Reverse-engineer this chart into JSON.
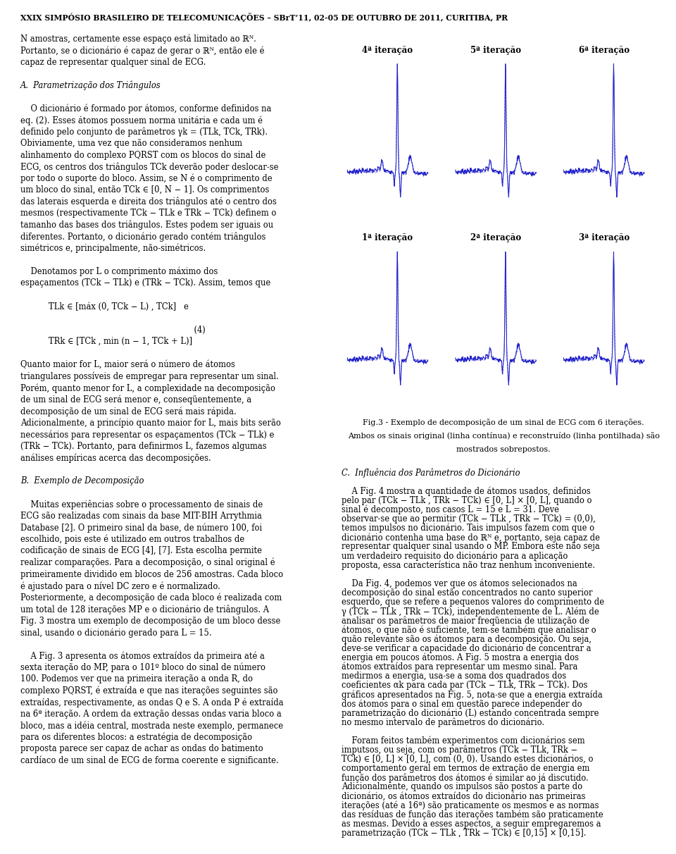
{
  "title_text": "XXIX SIMPÓSIO BRASILEIRO DE TELECOMUNICAÇÕES – SBrT’11, 02-05 DE OUTUBRO DE 2011, CURITIBA, PR",
  "ecg_color": "#2222cc",
  "plot_titles": [
    "1ª iteração",
    "2ª iteração",
    "3ª iteração",
    "4ª iteração",
    "5ª iteração",
    "6ª iteração"
  ],
  "caption_line1": "Fig.3 - Exemplo de decomposição de um sinal de ECG com 6 iterações.",
  "caption_line2": "Ambos os sinais original (linha contínua) e reconstruído (linha pontilhada) são",
  "caption_line3": "mostrados sobrepostos.",
  "page_bg": "#ffffff",
  "text_color": "#000000",
  "left_text": "N amostras, certamente esse espaço está limitado ao ℝᴺ.\nPortanto, se o dicionário é capaz de gerar o ℝᴺ, então ele é\ncapaz de representar qualquer sinal de ECG.\n\nA.  Parametrização dos Triângulos\n\n    O dicionário é formado por átomos, conforme definidos na\neq. (2). Esses átomos possuem norma unitária e cada um é\ndefinido pelo conjunto de parâmetros γk = (TLk, TCk, TRk).\nObiviamente, uma vez que não consideramos nenhum\nalinhamento do complexo PQRST com os blocos do sinal de\nECG, os centros dos triângulos TCk deverão poder deslocar-se\npor todo o suporte do bloco. Assim, se N é o comprimento de\num bloco do sinal, então TCk ∈ [0, N − 1]. Os comprimentos\ndas laterais esquerda e direita dos triângulos até o centro dos\nmesmos (respectivamente TCk − TLk e TRk − TCk) definem o\ntamanho das bases dos triângulos. Estes podem ser iguais ou\ndiferentes. Portanto, o dicionário gerado contém triângulos\nsimétricos e, principalmente, não-simétricos.\n\n    Denotamos por L o comprimento máximo dos\nespaçamentos (TCk − TLk) e (TRk − TCk). Assim, temos que\n\n           TLk ∈ [máx (0, TCk − L) , TCk]   e\n\n                                                                    (4)\n           TRk ∈ [TCk , min (n − 1, TCk + L)]\n\nQuanto maior for L, maior será o número de átomos\ntriangulares possíveis de empregar para representar um sinal.\nPorém, quanto menor for L, a complexidade na decomposição\nde um sinal de ECG será menor e, conseqüentemente, a\ndecomposição de um sinal de ECG será mais rápida.\nAdicionalmente, a princípio quanto maior for L, mais bits serão\nnecessários para representar os espaçamentos (TCk − TLk) e\n(TRk − TCk). Portanto, para definirmos L, fazemos algumas\nanálises empíricas acerca das decomposições.\n\nB.  Exemplo de Decomposição\n\n    Muitas experiências sobre o processamento de sinais de\nECG são realizadas com sinais da base MIT-BIH Arrythmia\nDatabase [2]. O primeiro sinal da base, de número 100, foi\nescolhido, pois este é utilizado em outros trabalhos de\ncodificação de sinais de ECG [4], [7]. Esta escolha permite\nrealizar comparações. Para a decomposição, o sinal original é\nprimeiramente dividido em blocos de 256 amostras. Cada bloco\né ajustado para o nível DC zero e é normalizado.\nPosteriormente, a decomposição de cada bloco é realizada com\num total de 128 iterações MP e o dicionário de triângulos. A\nFig. 3 mostra um exemplo de decomposição de um bloco desse\nsinal, usando o dicionário gerado para L = 15.\n\n    A Fig. 3 apresenta os átomos extraídos da primeira até a\nsexta iteração do MP, para o 101º bloco do sinal de número\n100. Podemos ver que na primeira iteração a onda R, do\ncomplexo PQRST, é extraída e que nas iterações seguintes são\nextraídas, respectivamente, as ondas Q e S. A onda P é extraída\nna 6ª iteração. A ordem da extração dessas ondas varia bloco a\nbloco, mas a idéia central, mostrada neste exemplo, permanece\npara os diferentes blocos: a estratégia de decomposição\nproposta parece ser capaz de achar as ondas do batimento\ncardíaco de um sinal de ECG de forma coerente e significante.",
  "right_text": "C.  Influência dos Parâmetros do Dicionário\n\n    A Fig. 4 mostra a quantidade de átomos usados, definidos\npelo par (TCk − TLk , TRk − TCk) ∈ [0, L] × [0, L], quando o\nsinal é decomposto, nos casos L = 15 e L = 31. Deve\nobservar-se que ao permitir (TCk − TLk , TRk − TCk) = (0,0),\ntemos impulsos no dicionário. Tais impulsos fazem com que o\ndicionário contenha uma base do ℝᴺ e, portanto, seja capaz de\nrepresentar qualquer sinal usando o MP. Embora este não seja\num verdadeiro requisito do dicionário para a aplicação\nproposta, essa característica não traz nenhum inconveniente.\n\n    Da Fig. 4, podemos ver que os átomos selecionados na\ndecomposição do sinal estão concentrados no canto superior\nesquerdo, que se refere a pequenos valores do comprimento de\nγ (TCk − TLk , TRk − TCk), independentemente de L. Além de\nanalisar os parâmetros de maior freqüencia de utilização de\nátomos, o que não é suficiente, tem-se também que analisar o\nquão relevante são os átomos para a decomposição. Ou seja,\ndeve-se verificar a capacidade do dicionário de concentrar a\nenergia em poucos átomos. A Fig. 5 mostra a energia dos\nátomos extraídos para representar um mesmo sinal. Para\nmedirmos a energia, usa-se a soma dos quadrados dos\ncoeficientes αk para cada par (TCk − TLk, TRk − TCk). Dos\ngráficos apresentados na Fig. 5, nota-se que a energia extraída\ndos átomos para o sinal em questão parece independer do\nparametrização do dicionário (L) estando concentrada sempre\nno mesmo intervalo de parâmetros do dicionário.\n\n    Foram feitos também experimentos com dicionários sem\nimputsos, ou seja, com os parâmetros (TCk − TLk, TRk −\nTCk) ∈ [0, L] × [0, L], com (0, 0). Usando estes dicionários, o\ncomportamento geral em termos de extração de energia em\nfunção dos parâmetros dos átomos é similar ao já discutido.\nAdicionalmente, quando os impulsos são postos a parte do\ndicionário, os átomos extraídos do dicionário nas primeiras\niterações (até a 16ª) são praticamente os mesmos e as normas\ndas resíduas de função das iterações também são praticamente\nas mesmas. Devido a esses aspectos, a seguir empregaremos a\nparametrização (TCk − TLk , TRk − TCk) ∈ [0,15] × [0,15]."
}
